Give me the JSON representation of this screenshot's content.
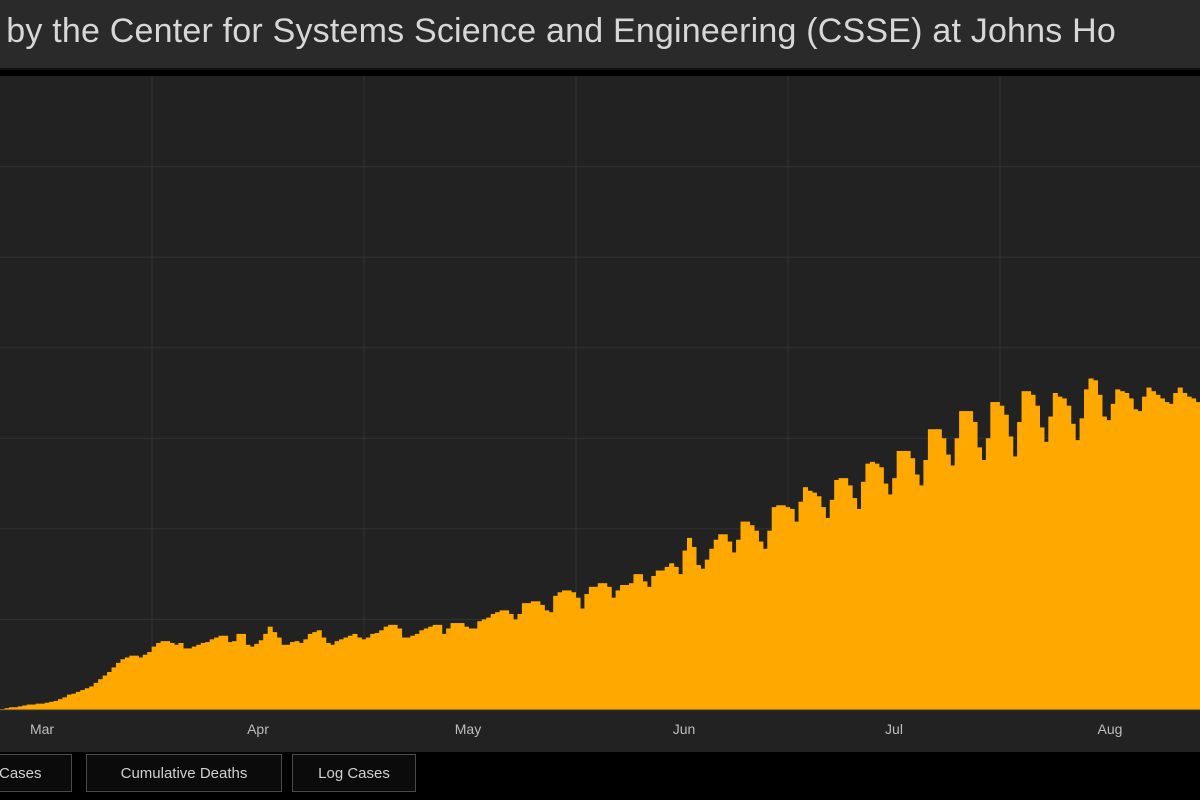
{
  "title": "rd by the Center for Systems Science and Engineering (CSSE) at Johns Ho",
  "tabs": [
    {
      "label": "Cases"
    },
    {
      "label": "Cumulative Deaths"
    },
    {
      "label": "Log Cases"
    }
  ],
  "colors": {
    "bar": "#FFA800",
    "panel_background": "#222222",
    "page_background": "#000000",
    "gridline": "#333333",
    "title_text": "#d7d7d7"
  },
  "chart_data": {
    "type": "bar",
    "x_ticks": [
      "Mar",
      "Apr",
      "May",
      "Jun",
      "Jul",
      "Aug"
    ],
    "values": [
      1,
      2,
      3,
      3,
      4,
      5,
      6,
      6,
      7,
      7,
      8,
      9,
      10,
      12,
      14,
      17,
      18,
      20,
      22,
      24,
      26,
      30,
      34,
      38,
      42,
      47,
      52,
      56,
      58,
      60,
      60,
      58,
      61,
      64,
      70,
      74,
      76,
      76,
      74,
      72,
      74,
      68,
      68,
      70,
      72,
      74,
      75,
      78,
      80,
      82,
      82,
      75,
      76,
      84,
      84,
      72,
      70,
      73,
      77,
      84,
      92,
      86,
      80,
      72,
      72,
      75,
      76,
      74,
      78,
      84,
      86,
      88,
      80,
      74,
      72,
      76,
      78,
      80,
      82,
      84,
      80,
      78,
      80,
      84,
      85,
      88,
      92,
      94,
      94,
      90,
      80,
      80,
      82,
      84,
      88,
      90,
      92,
      94,
      94,
      84,
      90,
      96,
      96,
      96,
      92,
      90,
      90,
      98,
      100,
      102,
      106,
      108,
      110,
      110,
      106,
      100,
      106,
      118,
      118,
      120,
      120,
      116,
      110,
      108,
      126,
      130,
      132,
      132,
      130,
      124,
      112,
      128,
      136,
      136,
      140,
      140,
      136,
      124,
      132,
      138,
      138,
      140,
      150,
      150,
      142,
      136,
      148,
      154,
      154,
      158,
      162,
      158,
      150,
      176,
      190,
      180,
      160,
      156,
      166,
      178,
      188,
      194,
      194,
      186,
      174,
      188,
      208,
      208,
      204,
      198,
      186,
      178,
      198,
      224,
      226,
      226,
      224,
      222,
      208,
      230,
      246,
      242,
      240,
      236,
      224,
      212,
      232,
      254,
      256,
      256,
      248,
      234,
      222,
      252,
      272,
      274,
      272,
      268,
      250,
      238,
      256,
      286,
      286,
      286,
      278,
      260,
      248,
      276,
      310,
      310,
      310,
      300,
      282,
      270,
      300,
      330,
      330,
      330,
      318,
      290,
      276,
      300,
      340,
      340,
      336,
      326,
      302,
      280,
      318,
      352,
      352,
      348,
      336,
      312,
      296,
      324,
      350,
      346,
      344,
      336,
      316,
      298,
      322,
      354,
      366,
      364,
      348,
      324,
      320,
      338,
      354,
      352,
      350,
      344,
      332,
      330,
      346,
      356,
      352,
      348,
      344,
      340,
      338,
      350,
      356,
      350,
      346,
      344,
      340
    ]
  }
}
